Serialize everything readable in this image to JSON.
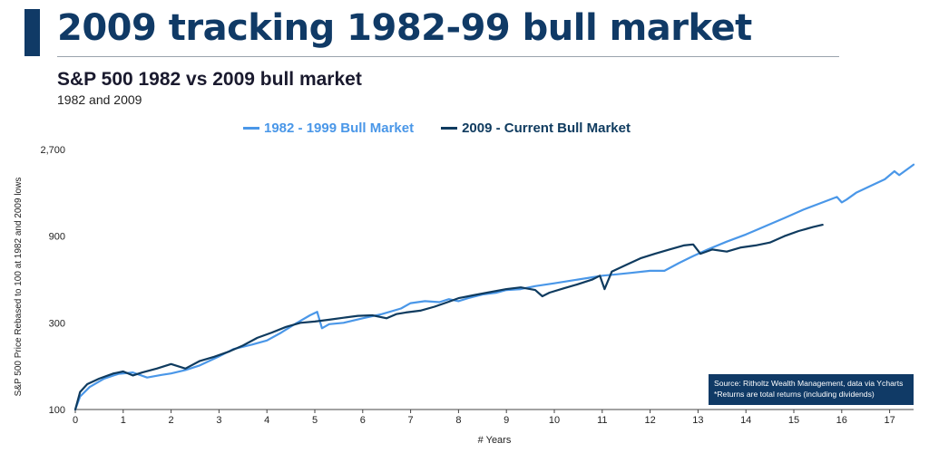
{
  "header": {
    "title": "2009 tracking 1982-99 bull market",
    "chart_title": "S&P 500 1982 vs 2009 bull market",
    "chart_subtitle": "1982 and 2009"
  },
  "source": {
    "line1": "Source: Ritholtz Wealth Management, data via Ycharts",
    "line2": "*Returns are total returns (including dividends)"
  },
  "colors": {
    "brand_navy": "#103a66",
    "series_1982": "#4a97e8",
    "series_2009": "#0f3b5f"
  },
  "chart_data": {
    "type": "line",
    "xlabel": "# Years",
    "ylabel": "S&P 500 Price Rebased to 100 at 1982 and 2009 lows",
    "xlim": [
      0,
      17.5
    ],
    "ylim": [
      100,
      2700
    ],
    "y_scale": "log",
    "x_ticks": [
      "0",
      "1",
      "2",
      "3",
      "4",
      "5",
      "6",
      "7",
      "8",
      "9",
      "10",
      "11",
      "12",
      "13",
      "14",
      "15",
      "16",
      "17"
    ],
    "y_ticks": [
      "100",
      "300",
      "900",
      "2,700"
    ],
    "grid": false,
    "legend_position": "top-center",
    "series": [
      {
        "name": "1982 - 1999 Bull Market",
        "color": "#4a97e8",
        "x": [
          0,
          0.1,
          0.3,
          0.6,
          0.9,
          1.2,
          1.5,
          1.8,
          2.0,
          2.3,
          2.6,
          3.0,
          3.3,
          3.7,
          4.0,
          4.3,
          4.6,
          4.9,
          5.05,
          5.15,
          5.3,
          5.6,
          6.0,
          6.4,
          6.8,
          7.0,
          7.3,
          7.6,
          7.8,
          8.0,
          8.2,
          8.5,
          8.8,
          9.0,
          9.3,
          9.6,
          10.0,
          10.4,
          10.8,
          11.0,
          11.3,
          11.6,
          12.0,
          12.3,
          12.6,
          12.9,
          13.2,
          13.6,
          14.0,
          14.4,
          14.8,
          15.2,
          15.6,
          15.9,
          16.0,
          16.1,
          16.3,
          16.6,
          16.9,
          17.1,
          17.2,
          17.5
        ],
        "y": [
          100,
          118,
          133,
          148,
          157,
          160,
          150,
          155,
          158,
          165,
          175,
          196,
          215,
          228,
          240,
          265,
          297,
          330,
          345,
          280,
          295,
          300,
          318,
          335,
          360,
          385,
          395,
          390,
          405,
          395,
          410,
          430,
          440,
          455,
          460,
          478,
          495,
          515,
          535,
          545,
          555,
          565,
          580,
          580,
          640,
          700,
          760,
          840,
          920,
          1020,
          1130,
          1260,
          1380,
          1480,
          1380,
          1430,
          1560,
          1700,
          1850,
          2050,
          1950,
          2230
        ]
      },
      {
        "name": "2009 - Current Bull Market",
        "color": "#0f3b5f",
        "x": [
          0,
          0.1,
          0.25,
          0.5,
          0.8,
          1.0,
          1.2,
          1.4,
          1.7,
          2.0,
          2.3,
          2.6,
          2.9,
          3.2,
          3.5,
          3.8,
          4.1,
          4.4,
          4.7,
          5.0,
          5.3,
          5.6,
          5.9,
          6.2,
          6.5,
          6.7,
          6.9,
          7.2,
          7.5,
          7.8,
          8.0,
          8.3,
          8.6,
          9.0,
          9.3,
          9.6,
          9.75,
          9.9,
          10.2,
          10.5,
          10.8,
          10.95,
          11.05,
          11.2,
          11.5,
          11.8,
          12.1,
          12.4,
          12.7,
          12.9,
          13.05,
          13.3,
          13.6,
          13.9,
          14.2,
          14.5,
          14.8,
          15.1,
          15.4,
          15.6
        ],
        "y": [
          100,
          125,
          138,
          148,
          158,
          162,
          154,
          160,
          168,
          178,
          168,
          185,
          195,
          208,
          225,
          248,
          265,
          285,
          300,
          305,
          312,
          320,
          328,
          330,
          318,
          335,
          342,
          350,
          368,
          392,
          410,
          425,
          440,
          460,
          470,
          455,
          420,
          440,
          465,
          490,
          520,
          545,
          460,
          575,
          625,
          680,
          720,
          760,
          800,
          810,
          720,
          760,
          740,
          780,
          800,
          830,
          900,
          960,
          1010,
          1040
        ]
      }
    ]
  }
}
